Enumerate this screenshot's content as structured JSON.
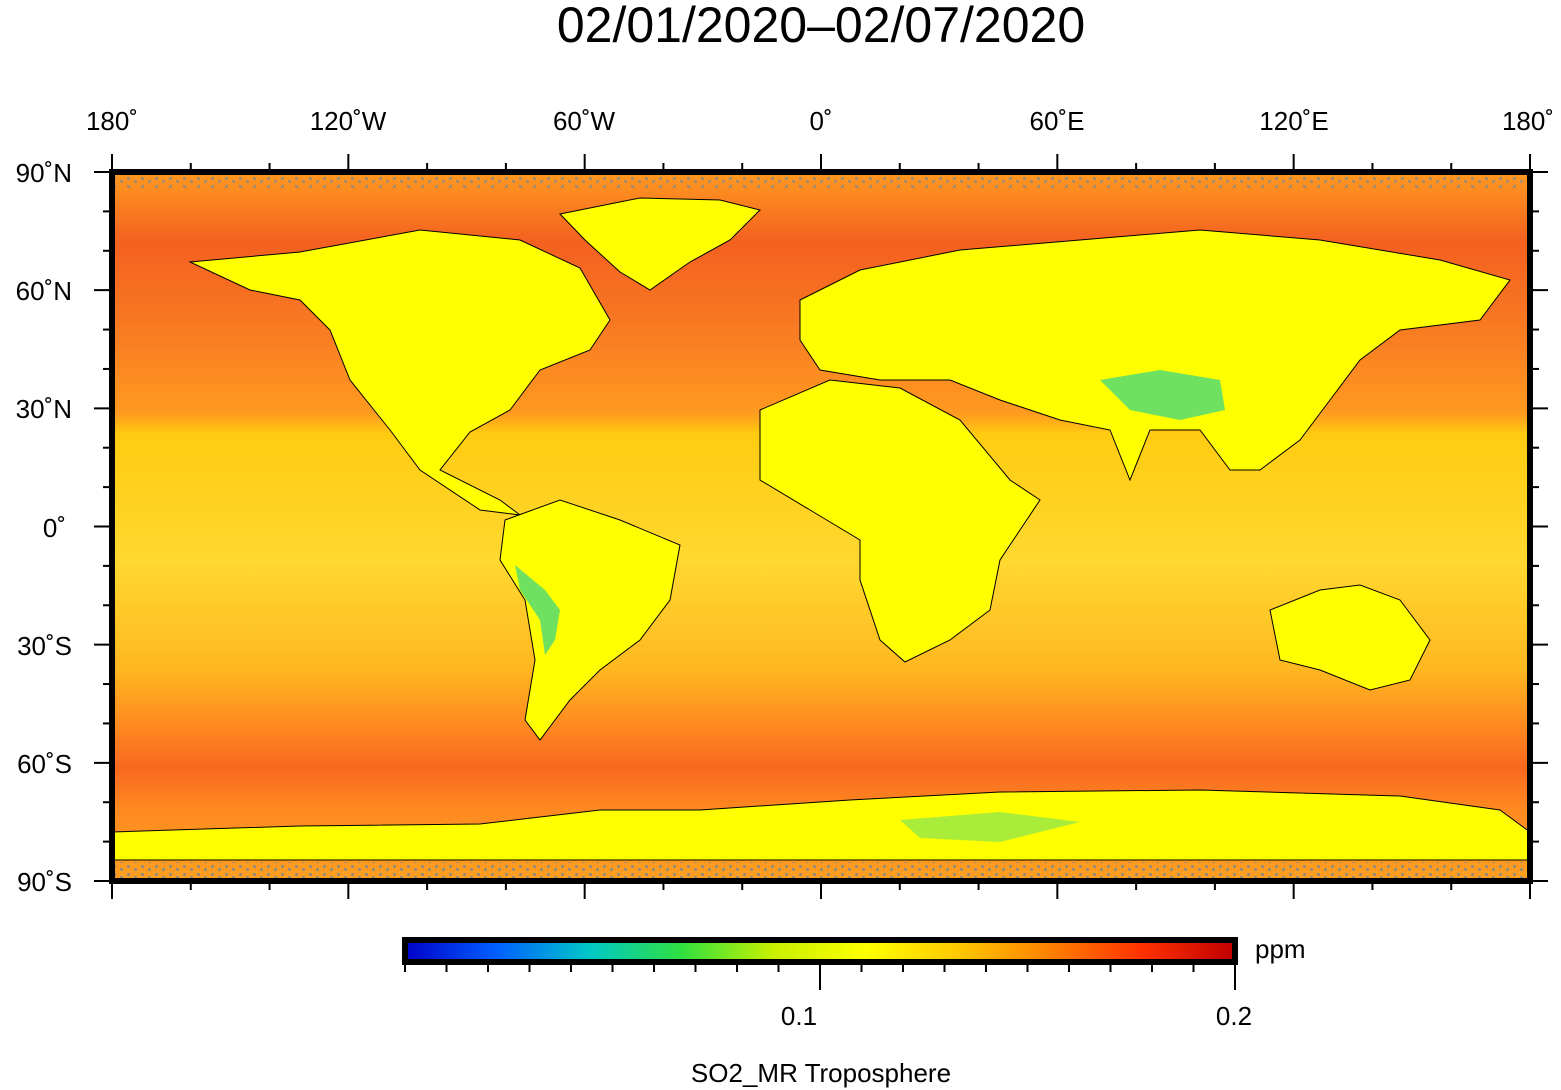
{
  "title": "02/01/2020–02/07/2020",
  "map": {
    "top_axis_labels": [
      "180˚",
      "120˚W",
      "60˚W",
      "0˚",
      "60˚E",
      "120˚E",
      "180˚"
    ],
    "left_axis_labels": [
      "90˚N",
      "60˚N",
      "30˚N",
      "0˚",
      "30˚S",
      "60˚S",
      "90˚S"
    ],
    "lon_ticks_deg": [
      -180,
      -120,
      -60,
      0,
      60,
      120,
      180
    ],
    "lat_ticks_deg": [
      90,
      60,
      30,
      0,
      -30,
      -60,
      -90
    ]
  },
  "colorbar": {
    "unit": "ppm",
    "tick_labels": [
      "0.1",
      "0.2"
    ],
    "tick_values": [
      0.1,
      0.2
    ],
    "range": [
      0,
      0.2
    ],
    "colors": [
      "#0000c8",
      "#0060ff",
      "#00c8c8",
      "#30e040",
      "#c8f000",
      "#ffff00",
      "#ffc800",
      "#ff8000",
      "#ff3000",
      "#c00000"
    ],
    "variable_label": "SO2_MR Troposphere"
  },
  "palette": {
    "ocean_band_yellow": "#ffd020",
    "mid_lat_orange": "#ff9020",
    "high_lat_red": "#f46020",
    "land_yellow": "#ffff00",
    "land_highland_green": "#60e060",
    "missing_gray": "#888888",
    "coastline": "#000000"
  }
}
